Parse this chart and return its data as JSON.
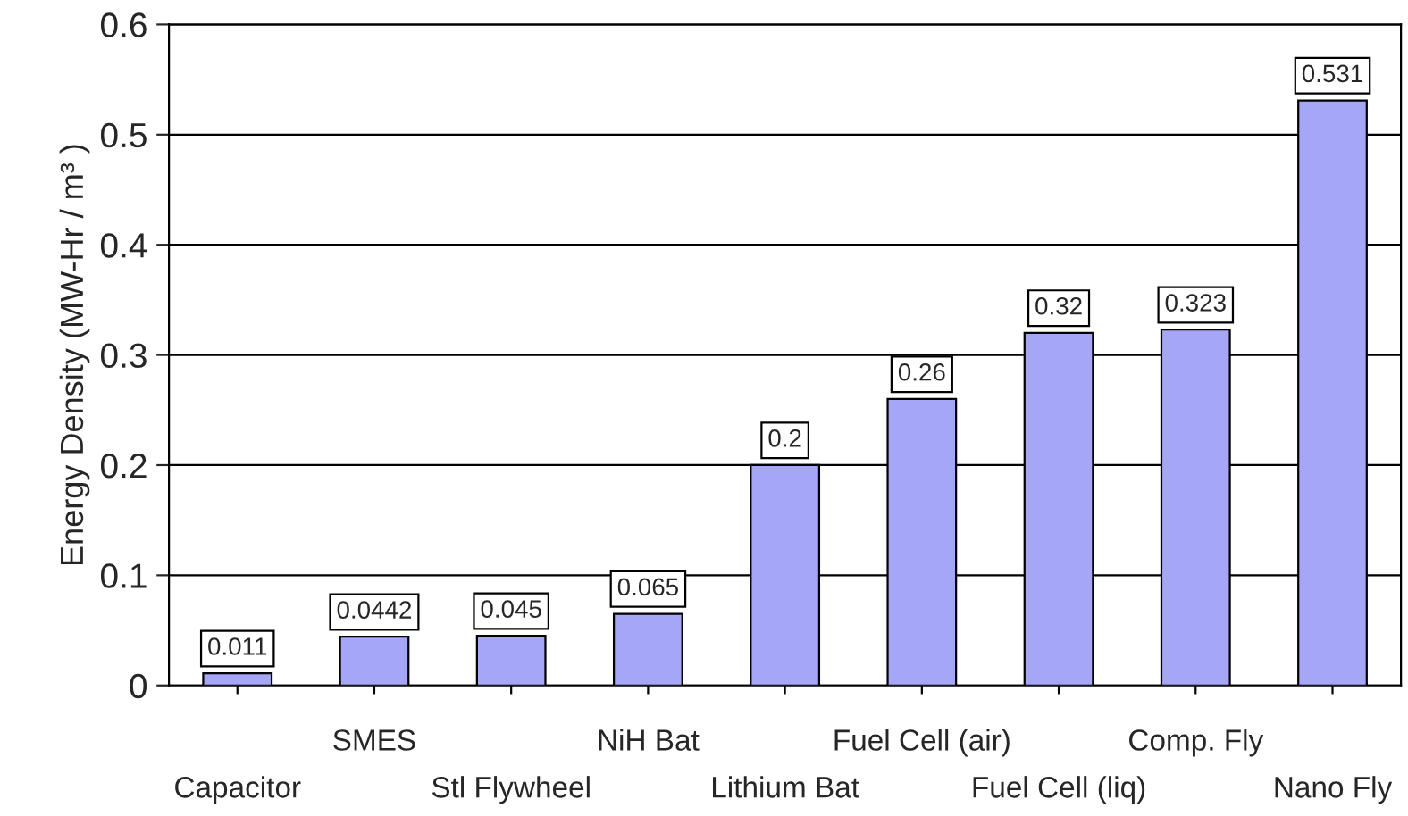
{
  "chart_data": {
    "type": "bar",
    "ylabel": "Energy Density (MW-Hr / m³ )",
    "categories": [
      "Capacitor",
      "SMES",
      "Stl Flywheel",
      "NiH Bat",
      "Lithium Bat",
      "Fuel Cell (air)",
      "Fuel Cell (liq)",
      "Comp. Fly",
      "Nano Fly"
    ],
    "values": [
      0.011,
      0.0442,
      0.045,
      0.065,
      0.2,
      0.26,
      0.32,
      0.323,
      0.531
    ],
    "color": "#a6a6f7",
    "ylim": [
      0,
      0.6
    ],
    "yticks": [
      0,
      0.1,
      0.2,
      0.3,
      0.4,
      0.5,
      0.6
    ],
    "grid": "y",
    "data_labels": true
  }
}
